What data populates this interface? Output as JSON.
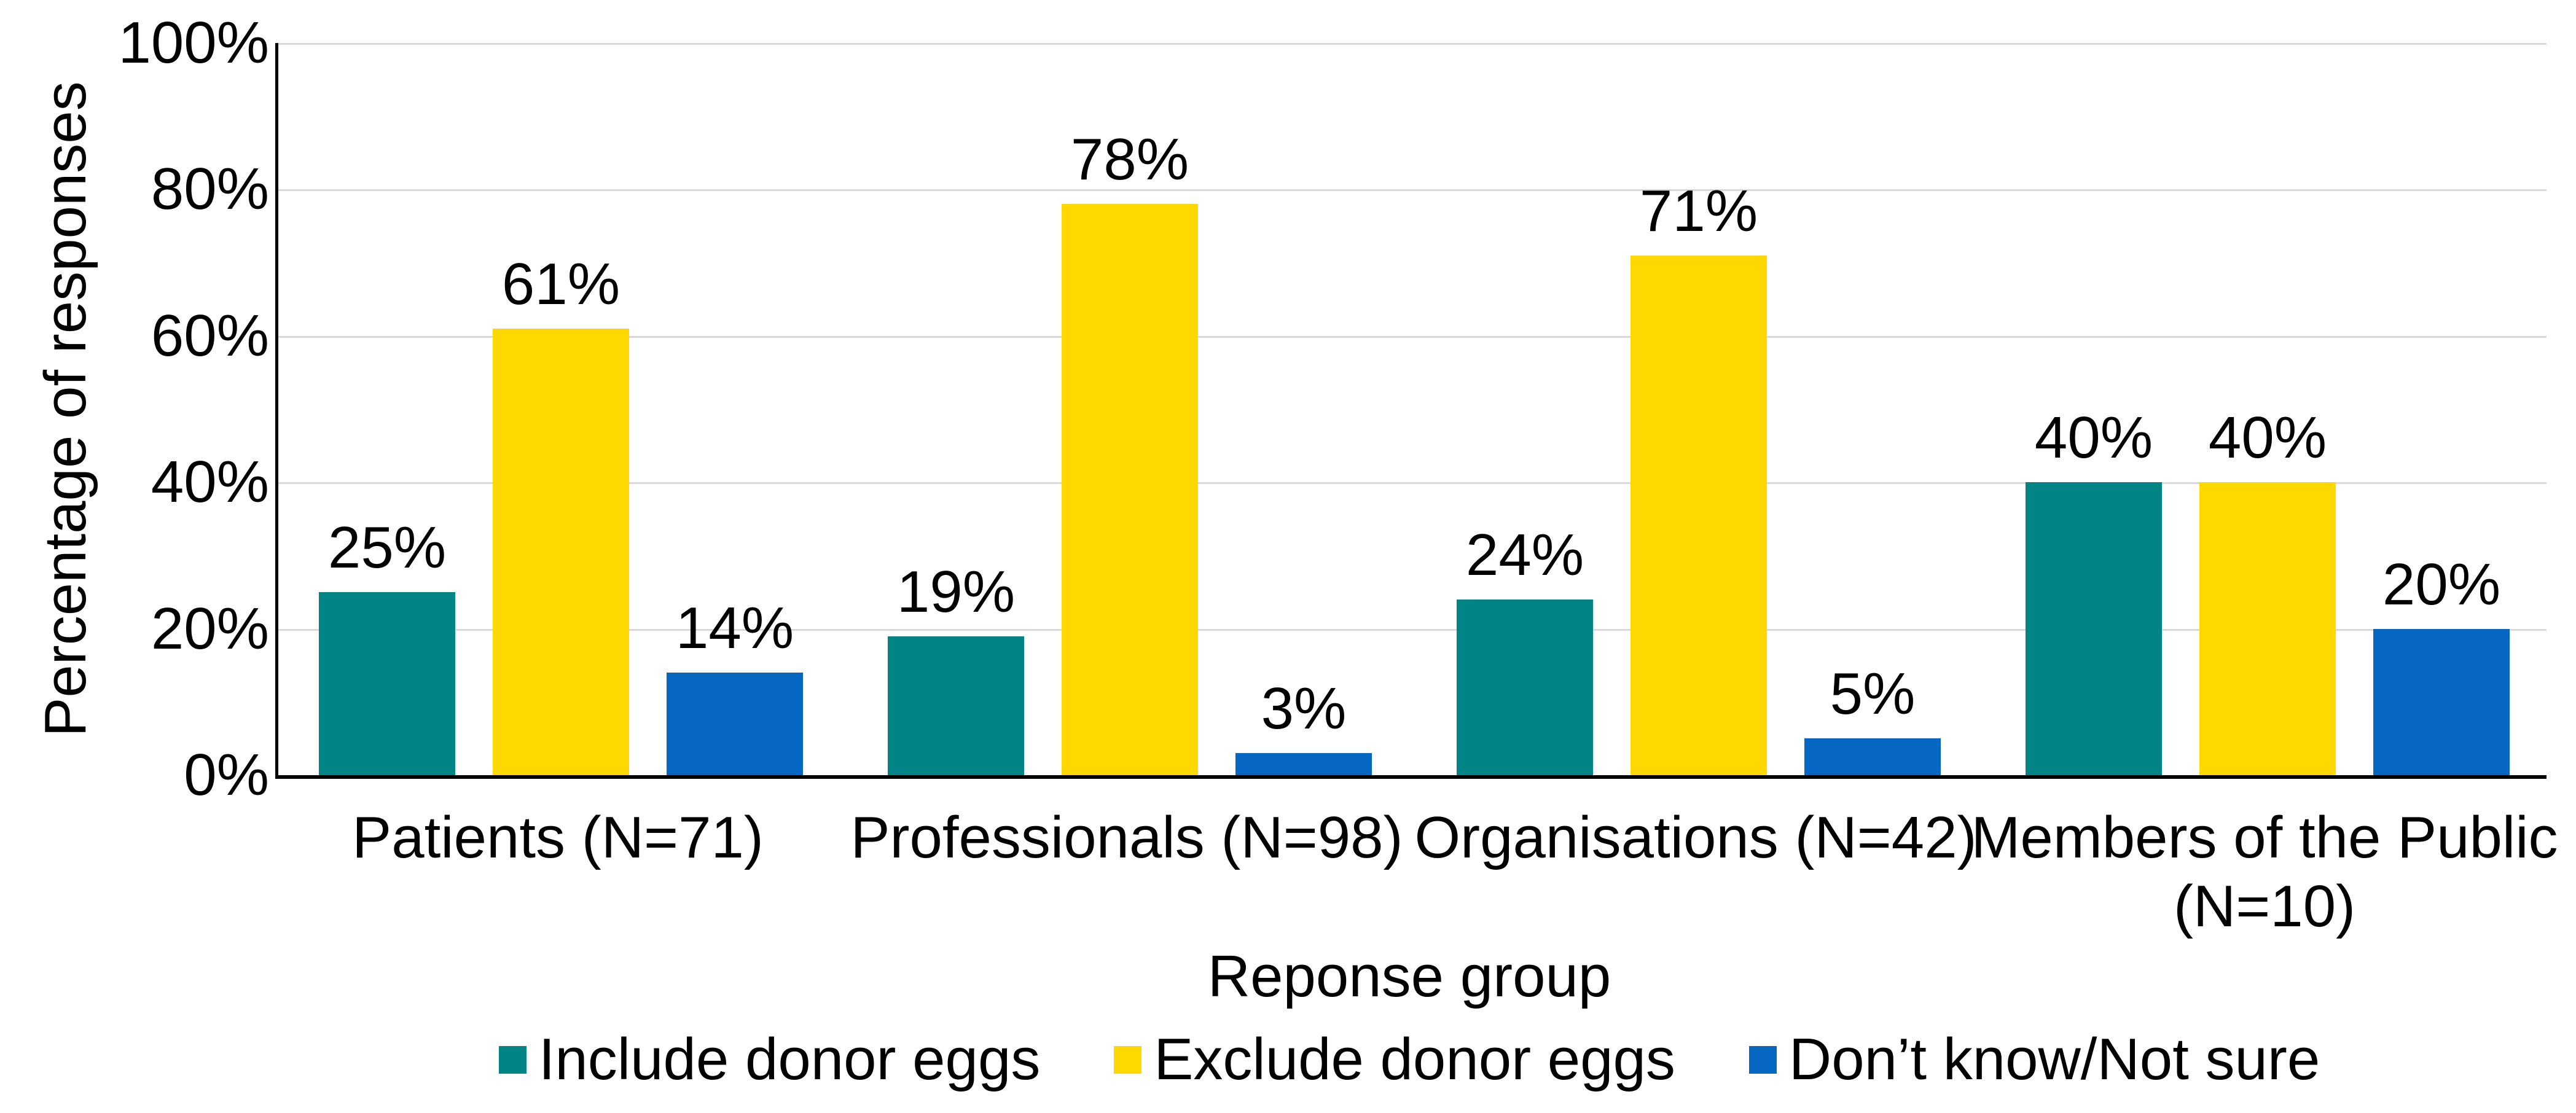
{
  "page": {
    "background": "#ffffff",
    "text_color": "#000000",
    "gridline_color": "#d9d9d9",
    "axis_color": "#000000"
  },
  "chart_data": {
    "type": "bar",
    "title": "",
    "xlabel": "Reponse group",
    "ylabel": "Percentage of responses",
    "categories": [
      "Patients (N=71)",
      "Professionals (N=98)",
      "Organisations (N=42)",
      "Members of the Public (N=10)"
    ],
    "series": [
      {
        "name": "Include donor eggs",
        "color": "#008486",
        "values": [
          25,
          19,
          24,
          40
        ],
        "labels": [
          "25%",
          "19%",
          "24%",
          "40%"
        ]
      },
      {
        "name": "Exclude donor eggs",
        "color": "#FFD802",
        "values": [
          61,
          78,
          71,
          40
        ],
        "labels": [
          "61%",
          "78%",
          "71%",
          "40%"
        ]
      },
      {
        "name": "Don’t know/Not sure",
        "color": "#0667C2",
        "values": [
          14,
          3,
          5,
          20
        ],
        "labels": [
          "14%",
          "3%",
          "5%",
          "20%"
        ]
      }
    ],
    "ylim": [
      0,
      100
    ],
    "yticks": [
      {
        "value": 0,
        "label": "0%"
      },
      {
        "value": 20,
        "label": "20%"
      },
      {
        "value": 40,
        "label": "40%"
      },
      {
        "value": 60,
        "label": "60%"
      },
      {
        "value": 80,
        "label": "80%"
      },
      {
        "value": 100,
        "label": "100%"
      }
    ],
    "grid": true,
    "legend_position": "bottom"
  }
}
